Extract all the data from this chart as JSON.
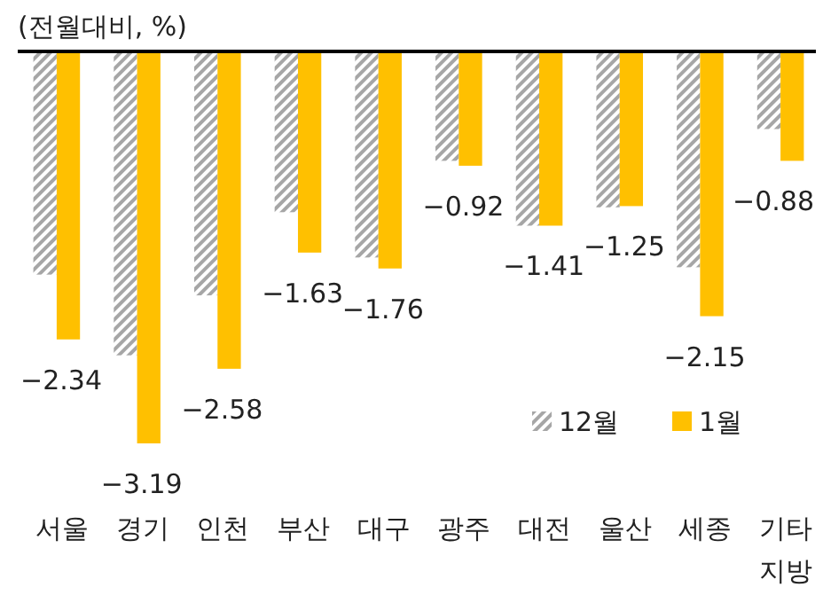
{
  "chart_data": {
    "type": "bar",
    "title": "(전월대비, %)",
    "categories": [
      "서울",
      "경기",
      "인천",
      "부산",
      "대구",
      "광주",
      "대전",
      "울산",
      "세종",
      "기타 지방"
    ],
    "series": [
      {
        "name": "12월",
        "color": "#a6a6a6",
        "values": [
          -1.81,
          -2.47,
          -1.98,
          -1.3,
          -1.67,
          -0.88,
          -1.41,
          -1.26,
          -1.75,
          -0.62
        ]
      },
      {
        "name": "1월",
        "color": "#ffc000",
        "values": [
          -2.34,
          -3.19,
          -2.58,
          -1.63,
          -1.76,
          -0.92,
          -1.41,
          -1.25,
          -2.15,
          -0.88
        ],
        "value_labels": [
          "−2.34",
          "−3.19",
          "−2.58",
          "−1.63",
          "−1.76",
          "−0.92",
          "−1.41",
          "−1.25",
          "−2.15",
          "−0.88"
        ]
      }
    ],
    "legend": "bottom right"
  }
}
